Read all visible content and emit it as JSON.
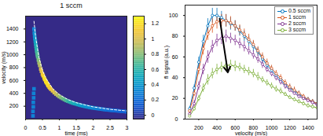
{
  "chart_data": [
    {
      "type": "heatmap",
      "title": "1 sccm",
      "x_label": "time (ms)",
      "y_label": "velocity (m/s)",
      "xlim": [
        0,
        3
      ],
      "xticks": [
        0,
        0.5,
        1,
        1.5,
        2,
        2.5,
        3
      ],
      "ylim": [
        0,
        1600
      ],
      "yticks": [
        200,
        400,
        600,
        800,
        1000,
        1200,
        1400
      ],
      "cells": [
        [
          0.22,
          50,
          0.3
        ],
        [
          0.22,
          120,
          0.3
        ],
        [
          0.23,
          190,
          0.3
        ],
        [
          0.23,
          260,
          0.3
        ],
        [
          0.24,
          330,
          0.3
        ],
        [
          0.24,
          400,
          0.3
        ],
        [
          0.25,
          470,
          0.3
        ],
        [
          0.25,
          1400,
          0.3
        ],
        [
          0.26,
          1340,
          0.35
        ],
        [
          0.27,
          1290,
          0.38
        ],
        [
          0.28,
          1250,
          0.4
        ],
        [
          0.29,
          1210,
          0.45
        ],
        [
          0.3,
          1170,
          0.5
        ],
        [
          0.31,
          1130,
          0.55
        ],
        [
          0.32,
          1095,
          0.58
        ],
        [
          0.33,
          1060,
          0.6
        ],
        [
          0.34,
          1030,
          0.65
        ],
        [
          0.35,
          1000,
          0.68
        ],
        [
          0.36,
          970,
          0.7
        ],
        [
          0.38,
          920,
          0.78
        ],
        [
          0.4,
          875,
          0.85
        ],
        [
          0.42,
          835,
          0.9
        ],
        [
          0.45,
          780,
          1.0
        ],
        [
          0.47,
          745,
          1.05
        ],
        [
          0.5,
          700,
          1.1
        ],
        [
          0.52,
          675,
          1.15
        ],
        [
          0.55,
          640,
          1.2
        ],
        [
          0.57,
          615,
          1.2
        ],
        [
          0.6,
          585,
          1.2
        ],
        [
          0.62,
          565,
          1.2
        ],
        [
          0.65,
          540,
          1.2
        ],
        [
          0.67,
          520,
          1.18
        ],
        [
          0.7,
          500,
          1.15
        ],
        [
          0.72,
          485,
          1.12
        ],
        [
          0.75,
          465,
          1.1
        ],
        [
          0.8,
          440,
          1.05
        ],
        [
          0.85,
          412,
          1.0
        ],
        [
          0.9,
          390,
          0.95
        ],
        [
          0.95,
          370,
          0.9
        ],
        [
          1.0,
          350,
          0.85
        ],
        [
          1.05,
          335,
          0.8
        ],
        [
          1.1,
          320,
          0.75
        ],
        [
          1.15,
          305,
          0.72
        ],
        [
          1.2,
          290,
          0.68
        ],
        [
          1.25,
          280,
          0.64
        ],
        [
          1.3,
          270,
          0.6
        ],
        [
          1.35,
          260,
          0.58
        ],
        [
          1.4,
          250,
          0.55
        ],
        [
          1.45,
          242,
          0.52
        ],
        [
          1.5,
          235,
          0.5
        ],
        [
          1.55,
          227,
          0.48
        ],
        [
          1.6,
          220,
          0.45
        ],
        [
          1.65,
          212,
          0.43
        ],
        [
          1.7,
          206,
          0.41
        ],
        [
          1.75,
          200,
          0.39
        ],
        [
          1.8,
          195,
          0.38
        ],
        [
          1.85,
          189,
          0.36
        ],
        [
          1.9,
          184,
          0.35
        ],
        [
          1.95,
          179,
          0.33
        ],
        [
          2.0,
          175,
          0.32
        ],
        [
          2.05,
          171,
          0.31
        ],
        [
          2.1,
          167,
          0.3
        ],
        [
          2.15,
          163,
          0.28
        ],
        [
          2.2,
          160,
          0.27
        ],
        [
          2.25,
          156,
          0.26
        ],
        [
          2.3,
          152,
          0.25
        ],
        [
          2.35,
          149,
          0.24
        ],
        [
          2.4,
          145,
          0.23
        ],
        [
          2.45,
          143,
          0.22
        ],
        [
          2.5,
          140,
          0.21
        ],
        [
          2.55,
          137,
          0.21
        ],
        [
          2.6,
          135,
          0.2
        ],
        [
          2.65,
          132,
          0.19
        ],
        [
          2.7,
          130,
          0.18
        ],
        [
          2.75,
          127,
          0.18
        ],
        [
          2.8,
          125,
          0.17
        ],
        [
          2.85,
          122,
          0.16
        ],
        [
          2.9,
          120,
          0.16
        ],
        [
          2.95,
          117,
          0.15
        ],
        [
          3.0,
          115,
          0.15
        ]
      ],
      "fit": {
        "color": "white",
        "line_style": "dashed",
        "points": [
          [
            0.25,
            1520
          ],
          [
            0.3,
            1270
          ],
          [
            0.4,
            950
          ],
          [
            0.5,
            760
          ],
          [
            0.6,
            635
          ],
          [
            0.8,
            475
          ],
          [
            1.0,
            380
          ],
          [
            1.25,
            305
          ],
          [
            1.5,
            255
          ],
          [
            2.0,
            190
          ],
          [
            2.5,
            152
          ],
          [
            3.0,
            127
          ]
        ]
      },
      "colorbar": {
        "range": [
          -0.05,
          1.3
        ],
        "ticks": [
          0,
          0.2,
          0.4,
          0.6,
          0.8,
          1,
          1.2
        ]
      }
    },
    {
      "type": "line",
      "x_label": "velocity (m/s)",
      "y_label": "fl signal (a.u.)",
      "xlim": [
        50,
        1500
      ],
      "xticks": [
        200,
        400,
        600,
        800,
        1000,
        1200,
        1400
      ],
      "ylim": [
        0,
        110
      ],
      "yticks": [
        0,
        20,
        40,
        60,
        80,
        100
      ],
      "legend": "top-right",
      "marker": "circle",
      "x": [
        100,
        150,
        200,
        250,
        300,
        350,
        400,
        450,
        500,
        550,
        600,
        650,
        700,
        750,
        800,
        850,
        900,
        950,
        1000,
        1050,
        1100,
        1150,
        1200,
        1250,
        1300,
        1350,
        1400,
        1450,
        1500
      ],
      "series": [
        {
          "name": "0.5 sccm",
          "color": "#0072BD",
          "values": [
            10,
            30,
            55,
            75,
            90,
            100,
            100,
            98,
            95,
            92,
            90,
            85,
            80,
            75,
            70,
            65,
            58,
            52,
            47,
            42,
            38,
            33,
            30,
            27,
            24,
            21,
            19,
            17,
            15
          ],
          "errors": [
            2,
            3,
            5,
            6,
            7,
            7,
            7,
            6,
            6,
            6,
            5,
            5,
            5,
            5,
            5,
            4,
            4,
            4,
            4,
            3,
            3,
            3,
            3,
            3,
            3,
            2,
            2,
            2,
            2
          ]
        },
        {
          "name": "1 sccm",
          "color": "#D95319",
          "values": [
            8,
            25,
            48,
            68,
            82,
            90,
            94,
            95,
            95,
            93,
            90,
            86,
            82,
            77,
            72,
            66,
            60,
            54,
            49,
            44,
            40,
            35,
            31,
            28,
            25,
            22,
            19,
            17,
            15
          ],
          "errors": [
            2,
            3,
            5,
            6,
            6,
            7,
            7,
            6,
            6,
            6,
            5,
            5,
            5,
            5,
            4,
            4,
            4,
            4,
            3,
            3,
            3,
            3,
            3,
            3,
            2,
            2,
            2,
            2,
            2
          ]
        },
        {
          "name": "2 sccm",
          "color": "#7E2F8E",
          "values": [
            5,
            15,
            32,
            48,
            60,
            70,
            76,
            78,
            80,
            78,
            76,
            73,
            70,
            66,
            62,
            58,
            53,
            48,
            44,
            40,
            36,
            32,
            28,
            25,
            22,
            20,
            18,
            16,
            14
          ],
          "errors": [
            2,
            3,
            4,
            5,
            6,
            6,
            6,
            6,
            6,
            5,
            5,
            5,
            5,
            4,
            4,
            4,
            4,
            3,
            3,
            3,
            3,
            3,
            2,
            2,
            2,
            2,
            2,
            2,
            2
          ]
        },
        {
          "name": "3 sccm",
          "color": "#77AC30",
          "values": [
            3,
            10,
            20,
            30,
            38,
            44,
            48,
            50,
            52,
            52,
            51,
            50,
            48,
            46,
            44,
            41,
            38,
            35,
            32,
            29,
            27,
            24,
            21,
            19,
            17,
            15,
            13,
            12,
            11
          ],
          "errors": [
            1,
            2,
            3,
            4,
            5,
            5,
            5,
            5,
            5,
            5,
            5,
            4,
            4,
            4,
            4,
            4,
            3,
            3,
            3,
            3,
            3,
            2,
            2,
            2,
            2,
            2,
            2,
            2,
            2
          ]
        }
      ],
      "arrow": {
        "from": [
          430,
          97
        ],
        "to": [
          520,
          45
        ]
      }
    }
  ]
}
